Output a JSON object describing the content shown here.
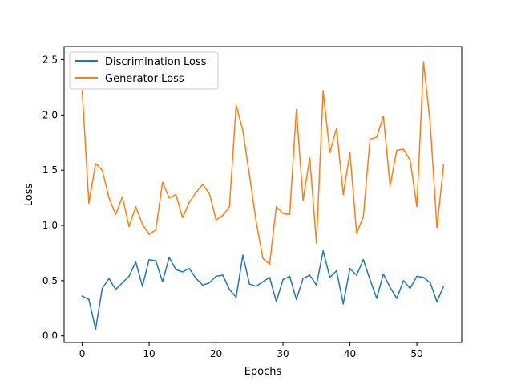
{
  "chart_data": {
    "type": "line",
    "title": "",
    "xlabel": "Epochs",
    "ylabel": "Loss",
    "xlim": [
      -2.7,
      56.7
    ],
    "ylim": [
      -0.06,
      2.62
    ],
    "xticks": [
      0,
      10,
      20,
      30,
      40,
      50
    ],
    "xtick_labels": [
      "0",
      "10",
      "20",
      "30",
      "40",
      "50"
    ],
    "yticks": [
      0.0,
      0.5,
      1.0,
      1.5,
      2.0,
      2.5
    ],
    "ytick_labels": [
      "0.0",
      "0.5",
      "1.0",
      "1.5",
      "2.0",
      "2.5"
    ],
    "grid": false,
    "legend_position": "top-left",
    "x": [
      0,
      1,
      2,
      3,
      4,
      5,
      6,
      7,
      8,
      9,
      10,
      11,
      12,
      13,
      14,
      15,
      16,
      17,
      18,
      19,
      20,
      21,
      22,
      23,
      24,
      25,
      26,
      27,
      28,
      29,
      30,
      31,
      32,
      33,
      34,
      35,
      36,
      37,
      38,
      39,
      40,
      41,
      42,
      43,
      44,
      45,
      46,
      47,
      48,
      49,
      50,
      51,
      52,
      53,
      54
    ],
    "series": [
      {
        "name": "Discrimination Loss",
        "color": "#1f77b4",
        "values": [
          0.36,
          0.33,
          0.06,
          0.43,
          0.52,
          0.42,
          0.48,
          0.54,
          0.67,
          0.45,
          0.69,
          0.68,
          0.49,
          0.71,
          0.6,
          0.58,
          0.61,
          0.52,
          0.46,
          0.48,
          0.54,
          0.55,
          0.42,
          0.35,
          0.73,
          0.47,
          0.45,
          0.49,
          0.53,
          0.31,
          0.51,
          0.54,
          0.33,
          0.52,
          0.55,
          0.46,
          0.77,
          0.53,
          0.59,
          0.29,
          0.61,
          0.55,
          0.69,
          0.51,
          0.34,
          0.56,
          0.44,
          0.34,
          0.5,
          0.43,
          0.54,
          0.53,
          0.48,
          0.31,
          0.45
        ]
      },
      {
        "name": "Generator Loss",
        "color": "#ff7f0e",
        "values": [
          2.22,
          1.2,
          1.56,
          1.5,
          1.25,
          1.1,
          1.26,
          0.99,
          1.17,
          1.01,
          0.92,
          0.96,
          1.39,
          1.25,
          1.28,
          1.07,
          1.21,
          1.3,
          1.37,
          1.29,
          1.05,
          1.09,
          1.17,
          2.09,
          1.86,
          1.45,
          1.03,
          0.7,
          0.65,
          1.17,
          1.11,
          1.1,
          2.05,
          1.23,
          1.61,
          0.84,
          2.22,
          1.66,
          1.88,
          1.28,
          1.66,
          0.93,
          1.08,
          1.78,
          1.8,
          1.99,
          1.36,
          1.68,
          1.69,
          1.59,
          1.17,
          2.48,
          1.92,
          0.98,
          1.55
        ]
      }
    ]
  }
}
